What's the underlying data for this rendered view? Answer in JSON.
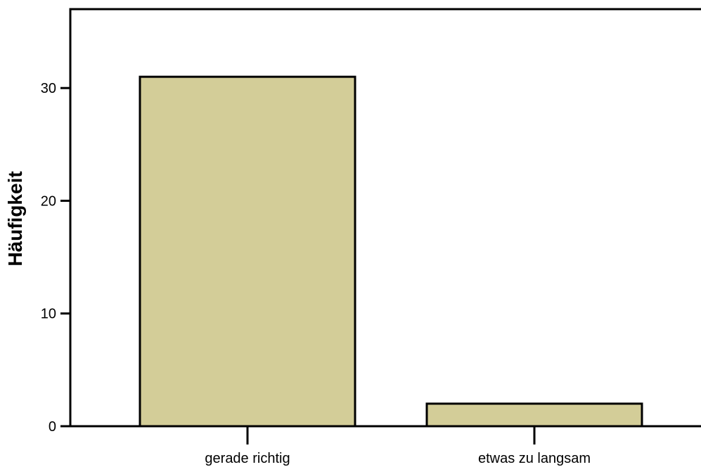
{
  "chart_data": {
    "type": "bar",
    "title": "",
    "xlabel": "",
    "ylabel": "Häufigkeit",
    "categories": [
      "gerade richtig",
      "etwas zu langsam"
    ],
    "values": [
      31,
      2
    ],
    "ylim": [
      0,
      37
    ],
    "yticks": [
      0,
      10,
      20,
      30
    ],
    "grid": false,
    "colors": {
      "bar_fill": "#D3CD98",
      "bar_stroke": "#000000",
      "axis": "#000000"
    }
  }
}
